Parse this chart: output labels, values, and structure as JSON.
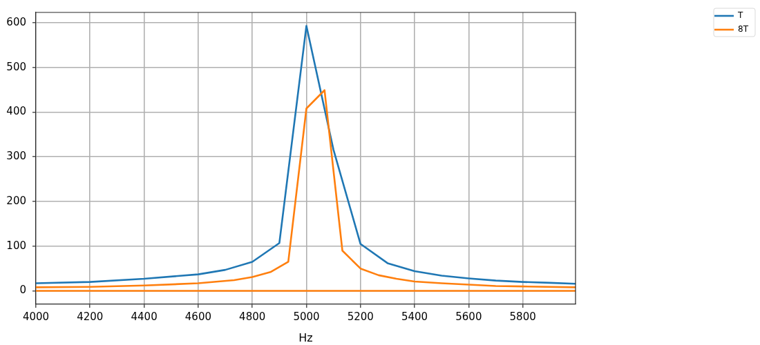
{
  "chart_data": {
    "type": "line",
    "xlabel": "Hz",
    "xlim": [
      4000,
      5995
    ],
    "xticks": [
      4000,
      4200,
      4400,
      4600,
      4800,
      5000,
      5200,
      5400,
      5600,
      5800
    ],
    "ylim": [
      -30,
      623
    ],
    "yticks": [
      0,
      100,
      200,
      300,
      400,
      500,
      600
    ],
    "grid": true,
    "legend": "top right",
    "series": [
      {
        "name": "T",
        "color": "#1f77b4",
        "x": [
          4000,
          4200,
          4400,
          4600,
          4700,
          4800,
          4900,
          5000,
          5100,
          5200,
          5300,
          5400,
          5500,
          5600,
          5700,
          5800,
          5900,
          5995
        ],
        "values": [
          17,
          20,
          27,
          37,
          47,
          65,
          107,
          593,
          316,
          105,
          62,
          44,
          34,
          28,
          23,
          20,
          18,
          16
        ]
      },
      {
        "name": "8T",
        "color": "#ff7f0e",
        "x": [
          4000,
          4200,
          4400,
          4600,
          4733,
          4800,
          4867,
          4933,
          5000,
          5067,
          5133,
          5200,
          5267,
          5333,
          5400,
          5500,
          5600,
          5700,
          5800,
          5995
        ],
        "values": [
          8,
          9,
          12,
          17,
          24,
          31,
          42,
          65,
          408,
          449,
          90,
          50,
          35,
          27,
          21,
          17,
          14,
          11,
          10,
          8
        ]
      },
      {
        "color": "#ff7f0e",
        "x": [
          4000,
          5995
        ],
        "values": [
          0,
          0
        ]
      }
    ]
  }
}
